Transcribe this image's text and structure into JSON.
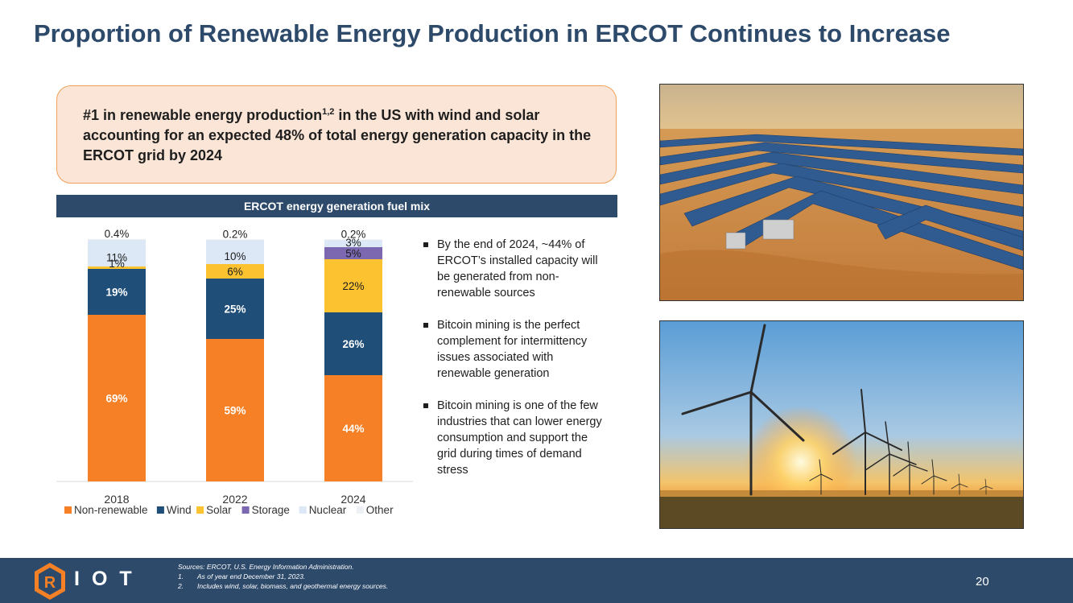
{
  "title": "Proportion of Renewable Energy Production in ERCOT Continues to Increase",
  "callout": {
    "text_part1": "#1 in renewable energy production",
    "superscript": "1,2",
    "text_part2": " in the US with wind and solar accounting for an expected 48% of total energy generation capacity in the ERCOT grid by 2024"
  },
  "chart_header": "ERCOT energy generation fuel mix",
  "chart_data": {
    "type": "bar",
    "stacked": true,
    "categories": [
      "2018",
      "2022",
      "2024"
    ],
    "series": [
      {
        "name": "Non-renewable",
        "color": "#f58025",
        "values": [
          69,
          59,
          44
        ],
        "labels": [
          "69%",
          "59%",
          "44%"
        ]
      },
      {
        "name": "Wind",
        "color": "#1f4e79",
        "values": [
          19,
          25,
          26
        ],
        "labels": [
          "19%",
          "25%",
          "26%"
        ]
      },
      {
        "name": "Solar",
        "color": "#fcc230",
        "values": [
          1,
          6,
          22
        ],
        "labels": [
          "1%",
          "6%",
          "22%"
        ]
      },
      {
        "name": "Storage",
        "color": "#7b68b0",
        "values": [
          0,
          0,
          5
        ],
        "labels": [
          "",
          "",
          "5%"
        ]
      },
      {
        "name": "Nuclear",
        "color": "#dce8f5",
        "values": [
          11,
          10,
          3
        ],
        "labels": [
          "11%",
          "10%",
          "3%"
        ]
      },
      {
        "name": "Other",
        "color": "#edf0f5",
        "values": [
          0.4,
          0.2,
          0.2
        ],
        "labels": [
          "0.4%",
          "0.2%",
          "0.2%"
        ]
      }
    ],
    "ylim": [
      0,
      100
    ],
    "legend_position": "bottom",
    "grid": false
  },
  "bullets": [
    "By the end of 2024, ~44% of ERCOT’s installed capacity will be generated from non-renewable sources",
    "Bitcoin mining is the perfect complement for intermittency issues associated with renewable generation",
    "Bitcoin mining is one of the few industries that can lower energy consumption and support the grid during times of demand stress"
  ],
  "footer": {
    "logo_letters": "IOT",
    "sources": [
      {
        "num": "",
        "text": "Sources: ERCOT, U.S. Energy Information Administration."
      },
      {
        "num": "1.",
        "text": "As of year end December 31, 2023."
      },
      {
        "num": "2.",
        "text": "Includes wind, solar, biomass, and geothermal energy sources."
      }
    ],
    "page_number": "20"
  },
  "colors": {
    "navy": "#2d4a6b",
    "orange": "#f58025",
    "callout_bg": "#fbe5d6"
  }
}
